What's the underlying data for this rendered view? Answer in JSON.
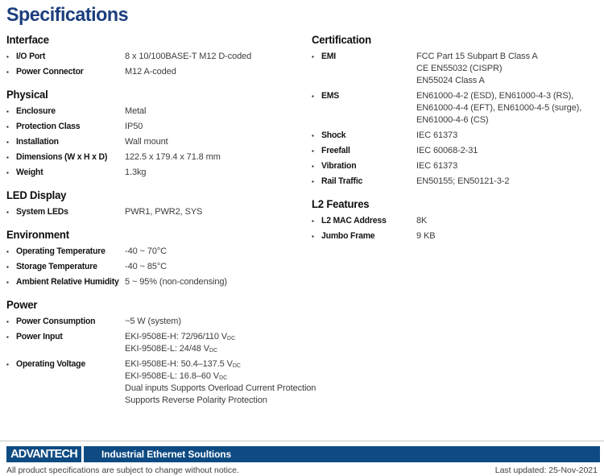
{
  "title": "Specifications",
  "columns": [
    {
      "sections": [
        {
          "title": "Interface",
          "rows": [
            {
              "label": "I/O Port",
              "values": [
                [
                  "8 x 10/100BASE-T M12 D-coded"
                ]
              ]
            },
            {
              "label": "Power Connector",
              "values": [
                [
                  "M12 A-coded"
                ]
              ]
            }
          ]
        },
        {
          "title": "Physical",
          "rows": [
            {
              "label": "Enclosure",
              "values": [
                [
                  "Metal"
                ]
              ]
            },
            {
              "label": "Protection Class",
              "values": [
                [
                  "IP50"
                ]
              ]
            },
            {
              "label": "Installation",
              "values": [
                [
                  "Wall mount"
                ]
              ]
            },
            {
              "label": "Dimensions (W x H x D)",
              "values": [
                [
                  "122.5 x 179.4 x 71.8 mm"
                ]
              ]
            },
            {
              "label": "Weight",
              "values": [
                [
                  "1.3kg"
                ]
              ]
            }
          ]
        },
        {
          "title": "LED Display",
          "rows": [
            {
              "label": "System LEDs",
              "values": [
                [
                  "PWR1, PWR2, SYS"
                ]
              ]
            }
          ]
        },
        {
          "title": "Environment",
          "rows": [
            {
              "label": "Operating Temperature",
              "values": [
                [
                  "-40 ~ 70°C"
                ]
              ]
            },
            {
              "label": "Storage Temperature",
              "values": [
                [
                  "-40 ~ 85°C"
                ]
              ]
            },
            {
              "label": "Ambient Relative Humidity",
              "values": [
                [
                  "5 ~ 95% (non-condensing)"
                ]
              ]
            }
          ]
        },
        {
          "title": "Power",
          "rows": [
            {
              "label": "Power Consumption",
              "values": [
                [
                  "~5 W (system)"
                ]
              ]
            },
            {
              "label": "Power Input",
              "values": [
                [
                  "EKI-9508E-H: 72/96/110 V",
                  {
                    "sub": "DC"
                  }
                ],
                [
                  "EKI-9508E-L: 24/48 V",
                  {
                    "sub": "DC"
                  }
                ]
              ]
            },
            {
              "label": "Operating Voltage",
              "values": [
                [
                  "EKI-9508E-H: 50.4–137.5 V",
                  {
                    "sub": "DC"
                  }
                ],
                [
                  "EKI-9508E-L: 16.8–60 V",
                  {
                    "sub": "DC"
                  }
                ],
                [
                  "Dual inputs Supports Overload Current Protection"
                ],
                [
                  "Supports Reverse Polarity Protection"
                ]
              ]
            }
          ]
        }
      ]
    },
    {
      "sections": [
        {
          "title": "Certification",
          "rows": [
            {
              "label": "EMI",
              "values": [
                [
                  "FCC Part 15 Subpart B Class A"
                ],
                [
                  "CE EN55032 (CISPR)"
                ],
                [
                  "EN55024 Class A"
                ]
              ]
            },
            {
              "label": "EMS",
              "values": [
                [
                  "EN61000-4-2 (ESD), EN61000-4-3 (RS),"
                ],
                [
                  "EN61000-4-4 (EFT), EN61000-4-5 (surge),"
                ],
                [
                  "EN61000-4-6 (CS)"
                ]
              ]
            },
            {
              "label": "Shock",
              "values": [
                [
                  "IEC 61373"
                ]
              ]
            },
            {
              "label": "Freefall",
              "values": [
                [
                  "IEC 60068-2-31"
                ]
              ]
            },
            {
              "label": "Vibration",
              "values": [
                [
                  "IEC 61373"
                ]
              ]
            },
            {
              "label": "Rail Traffic",
              "values": [
                [
                  "EN50155; EN50121-3-2"
                ]
              ]
            }
          ]
        },
        {
          "title": "L2 Features",
          "rows": [
            {
              "label": "L2 MAC Address",
              "values": [
                [
                  "8K"
                ]
              ]
            },
            {
              "label": "Jumbo Frame",
              "values": [
                [
                  "9 KB"
                ]
              ]
            }
          ]
        }
      ]
    }
  ],
  "bullet_glyph": "▪",
  "footer": {
    "logo": "ADVANTECH",
    "tagline": "Industrial Ethernet Soultions",
    "disclaimer": "All product specifications are subject to change without notice.",
    "last_updated": "Last updated: 25-Nov-2021"
  },
  "colors": {
    "title_blue": "#1c3e7e",
    "bar_blue": "#0e4b83"
  }
}
